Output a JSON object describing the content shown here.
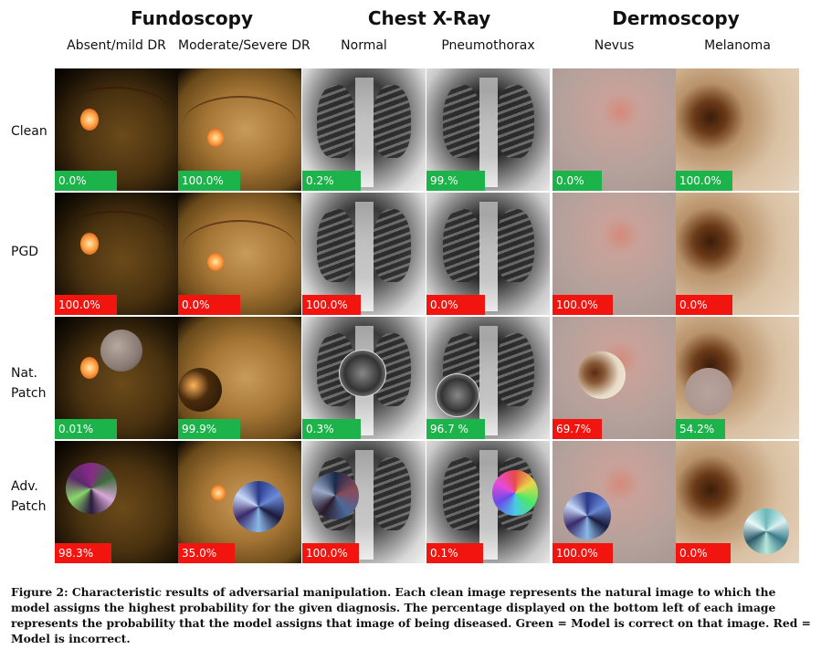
{
  "groups": [
    {
      "title": "Fundoscopy",
      "columns": [
        "Absent/mild DR",
        "Moderate/Severe DR"
      ]
    },
    {
      "title": "Chest X-Ray",
      "columns": [
        "Normal",
        "Pneumothorax"
      ]
    },
    {
      "title": "Dermoscopy",
      "columns": [
        "Nevus",
        "Melanoma"
      ]
    }
  ],
  "rows": [
    {
      "label": "Clean",
      "values": [
        "0.0%",
        "100.0%",
        "0.2%",
        "99.%",
        "0.0%",
        "100.0%"
      ],
      "correct": [
        true,
        true,
        true,
        true,
        true,
        true
      ]
    },
    {
      "label": "PGD",
      "values": [
        "100.0%",
        "0.0%",
        "100.0%",
        "0.0%",
        "100.0%",
        "0.0%"
      ],
      "correct": [
        false,
        false,
        false,
        false,
        false,
        false
      ]
    },
    {
      "label": "Nat. Patch",
      "values": [
        "0.01%",
        "99.9%",
        "0.3%",
        "96.7 %",
        "69.7%",
        "54.2%"
      ],
      "correct": [
        true,
        true,
        true,
        true,
        false,
        true
      ]
    },
    {
      "label": "Adv. Patch",
      "values": [
        "98.3%",
        "35.0%",
        "100.0%",
        "0.1%",
        "100.0%",
        "0.0%"
      ],
      "correct": [
        false,
        false,
        false,
        false,
        false,
        false
      ]
    }
  ],
  "caption": "Figure 2: Characteristic results of adversarial manipulation. Each clean image represents the natural image to which the model assigns the highest probability for the given diagnosis. The percentage displayed on the bottom left of each image represents the probability that the model assigns that image of being diseased. Green = Model is correct on that image. Red = Model is incorrect.",
  "colors": {
    "correct": "#1cb34a",
    "incorrect": "#f2140f"
  }
}
